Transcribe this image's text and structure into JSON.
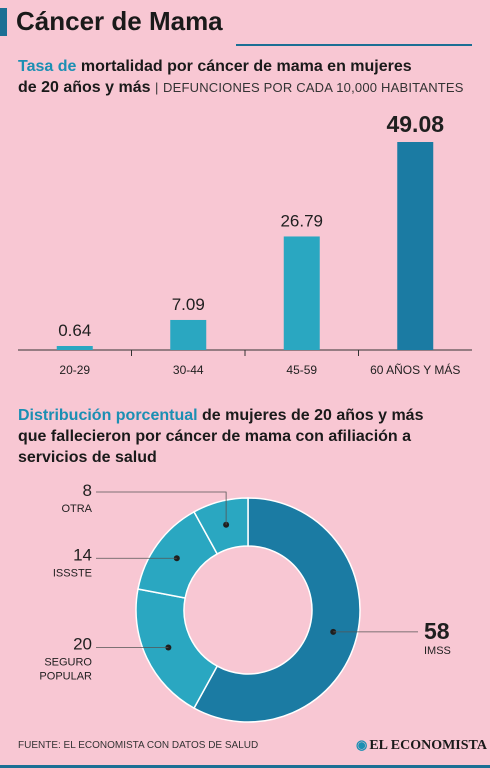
{
  "header": {
    "title": "Cáncer de Mama"
  },
  "section1": {
    "heading_highlight": "Tasa de",
    "heading_rest": "mortalidad por cáncer de mama en mujeres",
    "heading_line2": "de 20 años y más",
    "subtitle": "DEFUNCIONES POR CADA 10,000 HABITANTES"
  },
  "section2": {
    "heading_highlight": "Distribución porcentual",
    "heading_rest": "de mujeres de 20 años y más",
    "heading_line2": "que fallecieron por cáncer de mama con afiliación a",
    "heading_line3": "servicios de salud"
  },
  "footer": {
    "source": "FUENTE: EL ECONOMISTA CON DATOS DE SALUD",
    "brand": "EL ECONOMISTA"
  },
  "colors": {
    "background": "#f8c7d3",
    "bar_light": "#2aa7c1",
    "bar_dark": "#1b7ba3",
    "donut_primary": "#1b7ba3",
    "donut_secondary": "#2aa7c1",
    "accent": "#1b6f94"
  },
  "chart_data": [
    {
      "type": "bar",
      "categories": [
        "20-29",
        "30-44",
        "45-59",
        "60 AÑOS Y MÁS"
      ],
      "values": [
        0.64,
        7.09,
        26.79,
        49.08
      ],
      "value_labels": [
        "0.64",
        "7.09",
        "26.79",
        "49.08"
      ],
      "highlight_index": 3,
      "ylim": [
        0,
        49.08
      ],
      "grid": false
    },
    {
      "type": "pie",
      "donut": true,
      "slices": [
        {
          "label": "IMSS",
          "value": 58
        },
        {
          "label": "SEGURO POPULAR",
          "value": 20
        },
        {
          "label": "ISSSTE",
          "value": 14
        },
        {
          "label": "OTRA",
          "value": 8
        }
      ]
    }
  ]
}
